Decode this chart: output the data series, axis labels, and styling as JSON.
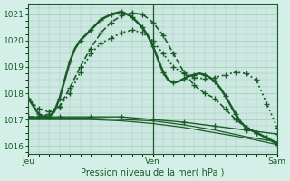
{
  "title": "Pression niveau de la mer( hPa )",
  "bg_color": "#d4eee8",
  "grid_color": "#a8cfc4",
  "line_color": "#1a5c28",
  "ylim": [
    1015.7,
    1021.4
  ],
  "yticks": [
    1016,
    1017,
    1018,
    1019,
    1020,
    1021
  ],
  "xlim": [
    0,
    48
  ],
  "xtick_pos": [
    0,
    24,
    48
  ],
  "xtick_labels": [
    "Jeu",
    "Ven",
    "Sam"
  ],
  "vline_x": 24,
  "series": [
    {
      "x": [
        0,
        1,
        2,
        3,
        4,
        5,
        6,
        7,
        8,
        9,
        10,
        11,
        12,
        13,
        14,
        15,
        16,
        17,
        18,
        19,
        20,
        21,
        22,
        23,
        24,
        25,
        26,
        27,
        28,
        29,
        30,
        31,
        32,
        33,
        34,
        35,
        36,
        37,
        38,
        39,
        40,
        41,
        42,
        43,
        44,
        45,
        46,
        47,
        48
      ],
      "y": [
        1017.8,
        1017.5,
        1017.2,
        1017.1,
        1017.1,
        1017.3,
        1017.8,
        1018.5,
        1019.2,
        1019.7,
        1020.0,
        1020.2,
        1020.4,
        1020.6,
        1020.8,
        1020.9,
        1021.0,
        1021.05,
        1021.1,
        1021.0,
        1020.9,
        1020.7,
        1020.5,
        1020.2,
        1019.8,
        1019.3,
        1018.8,
        1018.5,
        1018.4,
        1018.45,
        1018.55,
        1018.65,
        1018.7,
        1018.75,
        1018.7,
        1018.6,
        1018.45,
        1018.2,
        1017.9,
        1017.55,
        1017.2,
        1016.9,
        1016.7,
        1016.6,
        1016.5,
        1016.4,
        1016.3,
        1016.2,
        1016.1
      ],
      "style": "-",
      "marker": "+",
      "markersize": 4,
      "markevery": 2,
      "lw": 1.8
    },
    {
      "x": [
        0,
        2,
        4,
        6,
        8,
        10,
        12,
        14,
        16,
        18,
        20,
        22,
        24,
        26,
        28,
        30,
        32,
        34,
        36,
        38,
        40,
        42,
        44,
        46,
        48
      ],
      "y": [
        1017.1,
        1017.1,
        1017.2,
        1017.5,
        1018.2,
        1019.0,
        1019.7,
        1020.3,
        1020.7,
        1020.95,
        1021.05,
        1021.0,
        1020.7,
        1020.2,
        1019.5,
        1018.8,
        1018.3,
        1018.0,
        1017.8,
        1017.4,
        1017.0,
        1016.7,
        1016.5,
        1016.3,
        1016.05
      ],
      "style": "--",
      "marker": "+",
      "markersize": 4,
      "markevery": 1,
      "lw": 1.2
    },
    {
      "x": [
        0,
        2,
        4,
        6,
        8,
        10,
        12,
        14,
        16,
        18,
        20,
        22,
        24,
        26,
        28,
        30,
        32,
        34,
        36,
        38,
        40,
        42,
        44,
        46,
        48
      ],
      "y": [
        1017.8,
        1017.4,
        1017.3,
        1017.5,
        1018.0,
        1018.8,
        1019.5,
        1019.9,
        1020.1,
        1020.3,
        1020.4,
        1020.3,
        1020.0,
        1019.5,
        1019.0,
        1018.75,
        1018.6,
        1018.55,
        1018.6,
        1018.7,
        1018.8,
        1018.75,
        1018.5,
        1017.6,
        1016.7
      ],
      "style": ":",
      "marker": "+",
      "markersize": 4,
      "markevery": 1,
      "lw": 1.3
    },
    {
      "x": [
        0,
        6,
        12,
        18,
        24,
        30,
        36,
        42,
        48
      ],
      "y": [
        1017.1,
        1017.1,
        1017.1,
        1017.1,
        1017.0,
        1016.9,
        1016.75,
        1016.6,
        1016.45
      ],
      "style": "-",
      "marker": "+",
      "markersize": 4,
      "markevery": 1,
      "lw": 1.0
    },
    {
      "x": [
        0,
        6,
        12,
        18,
        24,
        30,
        36,
        42,
        48
      ],
      "y": [
        1017.05,
        1017.05,
        1017.05,
        1017.0,
        1016.95,
        1016.8,
        1016.6,
        1016.35,
        1016.15
      ],
      "style": "-",
      "marker": null,
      "markersize": 0,
      "markevery": 1,
      "lw": 0.9
    },
    {
      "x": [
        0,
        6,
        12,
        18,
        24,
        30,
        36,
        42,
        48
      ],
      "y": [
        1017.0,
        1017.0,
        1017.0,
        1016.95,
        1016.85,
        1016.7,
        1016.5,
        1016.3,
        1016.05
      ],
      "style": "-",
      "marker": null,
      "markersize": 0,
      "markevery": 1,
      "lw": 0.9
    }
  ],
  "plot_bg": "#cce8e0"
}
